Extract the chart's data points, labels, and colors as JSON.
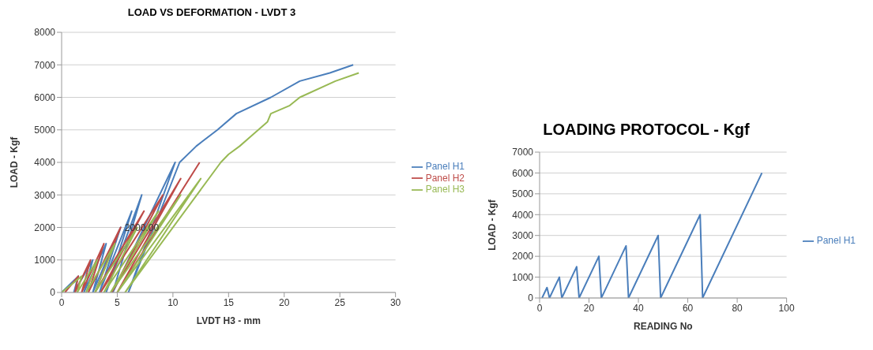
{
  "chart_data": [
    {
      "type": "line",
      "title": "LOAD VS DEFORMATION - LVDT 3",
      "xlabel": "LVDT H3 - mm",
      "ylabel": "LOAD - Kgf",
      "xlim": [
        0,
        30
      ],
      "xticks": [
        0,
        5,
        10,
        15,
        20,
        25,
        30
      ],
      "ylim": [
        0,
        8000
      ],
      "yticks": [
        0,
        1000,
        2000,
        3000,
        4000,
        5000,
        6000,
        7000,
        8000
      ],
      "grid": "y",
      "legend": "right",
      "marker": "none",
      "line_style": "solid",
      "annotations": [
        {
          "text": "2000.00",
          "x": 7.2,
          "y": 2000
        }
      ],
      "series": [
        {
          "name": "Panel H1",
          "color": "#4a7ebb",
          "x": [
            0,
            1.5,
            1.1,
            2.8,
            2.0,
            4.0,
            2.8,
            5.3,
            3.4,
            6.3,
            4.0,
            7.2,
            4.6,
            10.2,
            6.0,
            10.6,
            12.1,
            14.0,
            15.7,
            18.8,
            21.4,
            24.1,
            26.2
          ],
          "values": [
            0,
            500,
            0,
            1000,
            0,
            1500,
            0,
            2000,
            0,
            2500,
            0,
            3000,
            0,
            4000,
            0,
            4000,
            4500,
            5000,
            5500,
            6000,
            6500,
            6750,
            7000
          ]
        },
        {
          "name": "Panel H2",
          "color": "#be4b48",
          "x": [
            0.3,
            1.5,
            1.2,
            2.6,
            1.8,
            3.8,
            2.4,
            5.3,
            3.0,
            7.4,
            3.5,
            9.1,
            4.5,
            10.7,
            5.0,
            12.4
          ],
          "values": [
            0,
            500,
            0,
            1000,
            0,
            1500,
            0,
            2000,
            0,
            2500,
            0,
            3000,
            0,
            3500,
            0,
            4000
          ]
        },
        {
          "name": "Panel H3",
          "color": "#98b954",
          "x": [
            0,
            1.8,
            1.4,
            3.2,
            2.2,
            4.8,
            3.0,
            6.8,
            3.8,
            8.7,
            4.4,
            10.7,
            5.0,
            12.5,
            5.7,
            14.3,
            15.0,
            16.0,
            17.0,
            18.5,
            18.8,
            20.5,
            21.4,
            24.6,
            26.7
          ],
          "values": [
            0,
            500,
            0,
            1000,
            0,
            1500,
            0,
            2000,
            0,
            2500,
            0,
            3000,
            0,
            3500,
            0,
            4000,
            4250,
            4500,
            4800,
            5250,
            5500,
            5750,
            6000,
            6500,
            6750
          ]
        }
      ]
    },
    {
      "type": "line",
      "title": "LOADING PROTOCOL - Kgf",
      "xlabel": "READING No",
      "ylabel": "LOAD - Kgf",
      "xlim": [
        0,
        100
      ],
      "xticks": [
        0,
        20,
        40,
        60,
        80,
        100
      ],
      "ylim": [
        0,
        7000
      ],
      "yticks": [
        0,
        1000,
        2000,
        3000,
        4000,
        5000,
        6000,
        7000
      ],
      "grid": "y",
      "legend": "right",
      "marker": "none",
      "line_style": "solid",
      "series": [
        {
          "name": "Panel H1",
          "color": "#4a7ebb",
          "x": [
            1,
            3,
            4,
            8,
            9,
            15,
            16,
            24,
            25,
            35,
            36,
            48,
            49,
            65,
            66,
            90
          ],
          "values": [
            0,
            500,
            0,
            1000,
            0,
            1500,
            0,
            2000,
            0,
            2500,
            0,
            3000,
            0,
            4000,
            0,
            6000
          ]
        }
      ]
    }
  ]
}
